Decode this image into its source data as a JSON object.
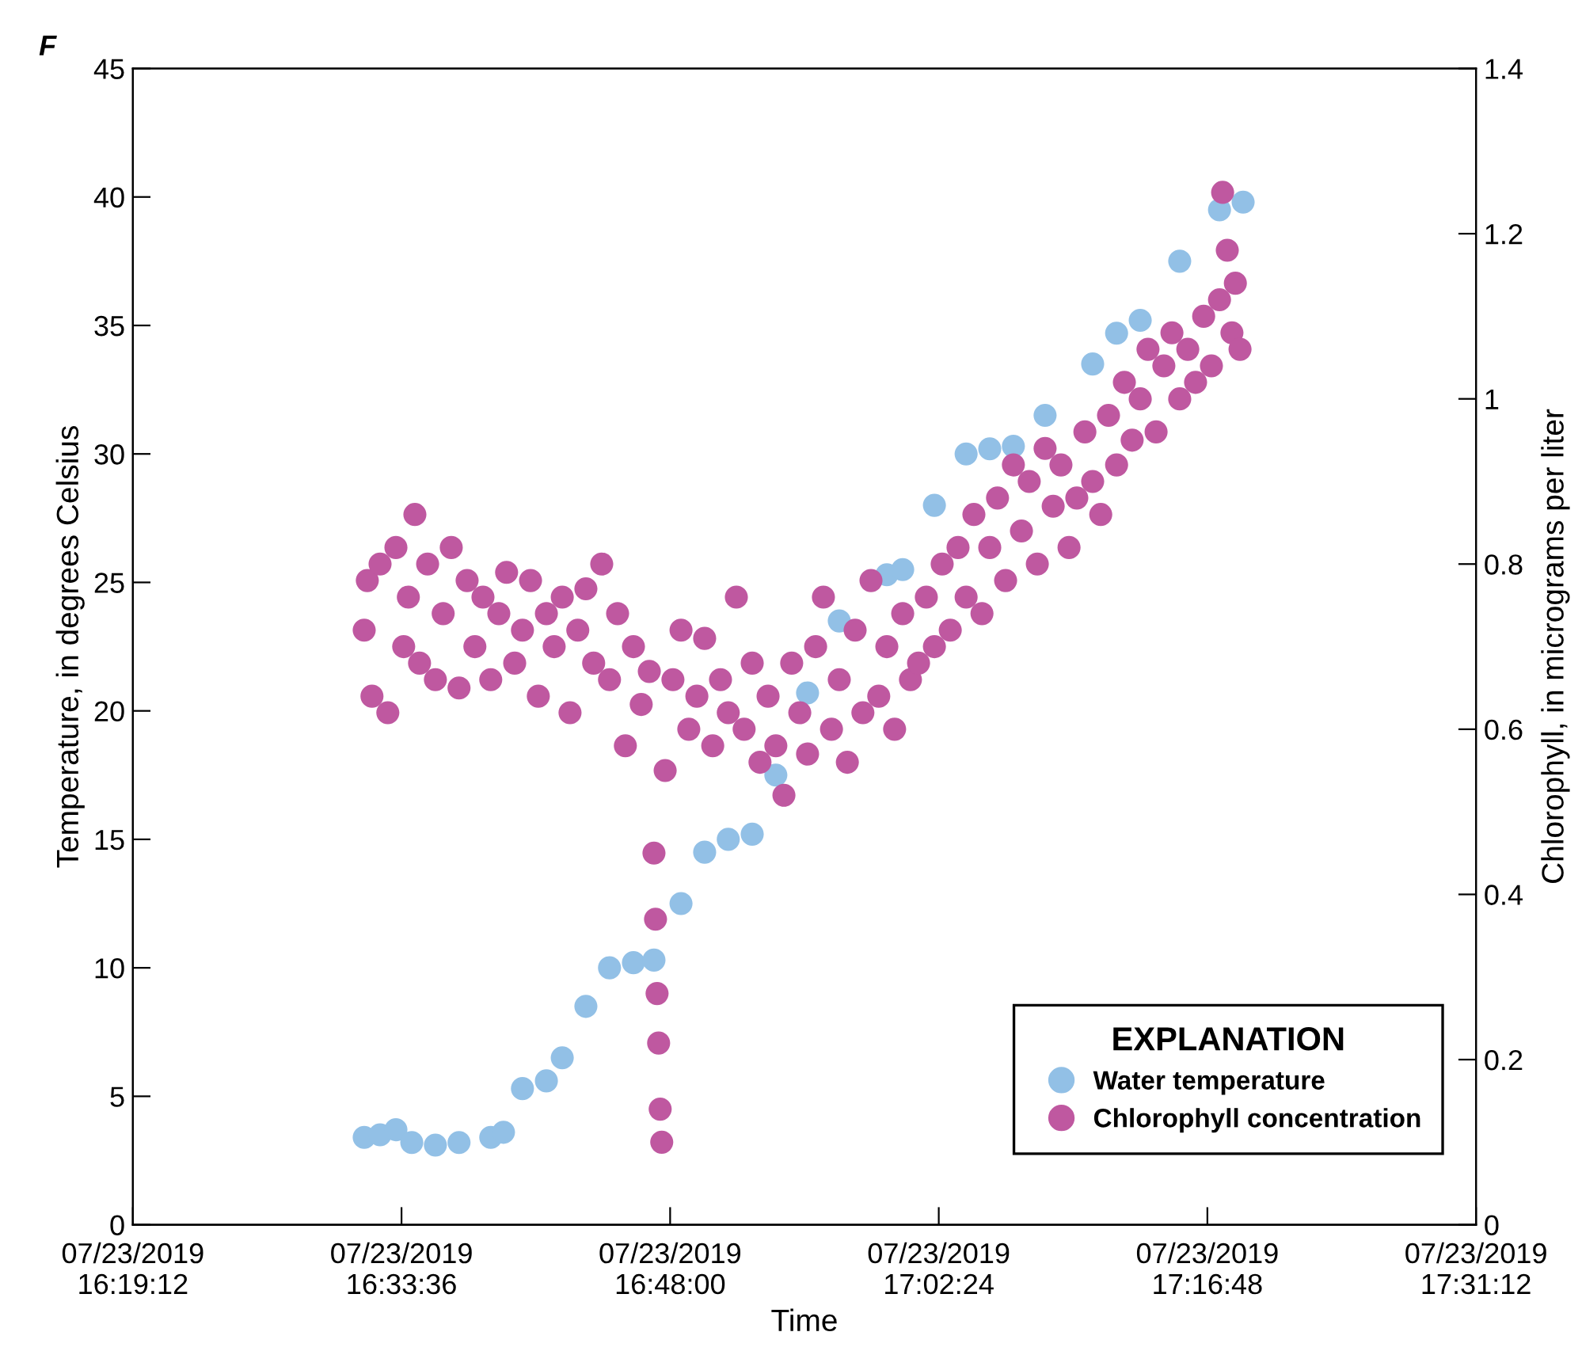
{
  "chart_data": {
    "type": "scatter",
    "title": "F",
    "xlabel": "Time",
    "ylabel": "Temperature, in degrees Celsius",
    "y2label": "Chlorophyll, in micrograms per liter",
    "legend_title": "EXPLANATION",
    "legend": "bottom right",
    "grid": false,
    "marker": "circle",
    "xlim": [
      "2019-07-23T16:19:12",
      "2019-07-23T17:31:12"
    ],
    "xticks": [
      {
        "value": "2019-07-23T16:19:12",
        "label": "07/23/2019\n16:19:12"
      },
      {
        "value": "2019-07-23T16:33:36",
        "label": "07/23/2019\n16:33:36"
      },
      {
        "value": "2019-07-23T16:48:00",
        "label": "07/23/2019\n16:48:00"
      },
      {
        "value": "2019-07-23T17:02:24",
        "label": "07/23/2019\n17:02:24"
      },
      {
        "value": "2019-07-23T17:16:48",
        "label": "07/23/2019\n17:16:48"
      },
      {
        "value": "2019-07-23T17:31:12",
        "label": "07/23/2019\n17:31:12"
      }
    ],
    "ylim": [
      0,
      45
    ],
    "yticks": [
      0,
      5,
      10,
      15,
      20,
      25,
      30,
      35,
      40,
      45
    ],
    "y2lim": [
      0,
      1.4
    ],
    "y2ticks": [
      0,
      0.2,
      0.4,
      0.6,
      0.8,
      1,
      1.2,
      1.4
    ],
    "series": [
      {
        "name": "Water temperature",
        "color": "#92c0e6",
        "x": [
          "2019-07-23T16:31:36",
          "2019-07-23T16:32:27",
          "2019-07-23T16:33:18",
          "2019-07-23T16:34:09",
          "2019-07-23T16:35:25",
          "2019-07-23T16:36:41",
          "2019-07-23T16:38:23",
          "2019-07-23T16:39:04",
          "2019-07-23T16:40:05",
          "2019-07-23T16:41:22",
          "2019-07-23T16:42:13",
          "2019-07-23T16:43:29",
          "2019-07-23T16:44:45",
          "2019-07-23T16:46:02",
          "2019-07-23T16:47:08",
          "2019-07-23T16:48:35",
          "2019-07-23T16:49:51",
          "2019-07-23T16:51:07",
          "2019-07-23T16:52:24",
          "2019-07-23T16:53:40",
          "2019-07-23T16:55:22",
          "2019-07-23T16:57:04",
          "2019-07-23T16:59:37",
          "2019-07-23T17:00:28",
          "2019-07-23T17:02:10",
          "2019-07-23T17:03:52",
          "2019-07-23T17:05:08",
          "2019-07-23T17:06:24",
          "2019-07-23T17:08:06",
          "2019-07-23T17:10:39",
          "2019-07-23T17:11:56",
          "2019-07-23T17:13:12",
          "2019-07-23T17:15:19",
          "2019-07-23T17:17:27",
          "2019-07-23T17:18:43"
        ],
        "values": [
          3.4,
          3.5,
          3.7,
          3.2,
          3.1,
          3.2,
          3.4,
          3.6,
          5.3,
          5.6,
          6.5,
          8.5,
          10.0,
          10.2,
          10.3,
          12.5,
          14.5,
          15.0,
          15.2,
          17.5,
          20.7,
          23.5,
          25.3,
          25.5,
          28.0,
          30.0,
          30.2,
          30.3,
          31.5,
          33.5,
          34.7,
          35.2,
          37.5,
          39.5,
          39.8
        ]
      },
      {
        "name": "Chlorophyll concentration",
        "color": "#bf58a0",
        "axis": "y2",
        "x": [
          "2019-07-23T16:31:36",
          "2019-07-23T16:31:46",
          "2019-07-23T16:32:01",
          "2019-07-23T16:32:27",
          "2019-07-23T16:32:52",
          "2019-07-23T16:33:18",
          "2019-07-23T16:33:43",
          "2019-07-23T16:33:58",
          "2019-07-23T16:34:19",
          "2019-07-23T16:34:34",
          "2019-07-23T16:35:00",
          "2019-07-23T16:35:25",
          "2019-07-23T16:35:50",
          "2019-07-23T16:36:16",
          "2019-07-23T16:36:41",
          "2019-07-23T16:37:07",
          "2019-07-23T16:37:32",
          "2019-07-23T16:37:58",
          "2019-07-23T16:38:23",
          "2019-07-23T16:38:49",
          "2019-07-23T16:39:14",
          "2019-07-23T16:39:40",
          "2019-07-23T16:40:05",
          "2019-07-23T16:40:31",
          "2019-07-23T16:40:56",
          "2019-07-23T16:41:22",
          "2019-07-23T16:41:47",
          "2019-07-23T16:42:13",
          "2019-07-23T16:42:38",
          "2019-07-23T16:43:03",
          "2019-07-23T16:43:29",
          "2019-07-23T16:43:54",
          "2019-07-23T16:44:20",
          "2019-07-23T16:44:45",
          "2019-07-23T16:45:11",
          "2019-07-23T16:45:36",
          "2019-07-23T16:46:02",
          "2019-07-23T16:46:27",
          "2019-07-23T16:46:53",
          "2019-07-23T16:47:08",
          "2019-07-23T16:47:13",
          "2019-07-23T16:47:18",
          "2019-07-23T16:47:23",
          "2019-07-23T16:47:28",
          "2019-07-23T16:47:33",
          "2019-07-23T16:47:44",
          "2019-07-23T16:48:09",
          "2019-07-23T16:48:35",
          "2019-07-23T16:49:00",
          "2019-07-23T16:49:26",
          "2019-07-23T16:49:51",
          "2019-07-23T16:50:17",
          "2019-07-23T16:50:42",
          "2019-07-23T16:51:07",
          "2019-07-23T16:51:33",
          "2019-07-23T16:51:58",
          "2019-07-23T16:52:24",
          "2019-07-23T16:52:49",
          "2019-07-23T16:53:15",
          "2019-07-23T16:53:40",
          "2019-07-23T16:54:06",
          "2019-07-23T16:54:31",
          "2019-07-23T16:54:57",
          "2019-07-23T16:55:22",
          "2019-07-23T16:55:48",
          "2019-07-23T16:56:13",
          "2019-07-23T16:56:39",
          "2019-07-23T16:57:04",
          "2019-07-23T16:57:30",
          "2019-07-23T16:57:55",
          "2019-07-23T16:58:20",
          "2019-07-23T16:58:46",
          "2019-07-23T16:59:11",
          "2019-07-23T16:59:37",
          "2019-07-23T17:00:02",
          "2019-07-23T17:00:28",
          "2019-07-23T17:00:53",
          "2019-07-23T17:01:19",
          "2019-07-23T17:01:44",
          "2019-07-23T17:02:10",
          "2019-07-23T17:02:35",
          "2019-07-23T17:03:01",
          "2019-07-23T17:03:26",
          "2019-07-23T17:03:52",
          "2019-07-23T17:04:17",
          "2019-07-23T17:04:43",
          "2019-07-23T17:05:08",
          "2019-07-23T17:05:33",
          "2019-07-23T17:05:59",
          "2019-07-23T17:06:24",
          "2019-07-23T17:06:50",
          "2019-07-23T17:07:15",
          "2019-07-23T17:07:41",
          "2019-07-23T17:08:06",
          "2019-07-23T17:08:32",
          "2019-07-23T17:08:57",
          "2019-07-23T17:09:23",
          "2019-07-23T17:09:48",
          "2019-07-23T17:10:14",
          "2019-07-23T17:10:39",
          "2019-07-23T17:11:05",
          "2019-07-23T17:11:30",
          "2019-07-23T17:11:56",
          "2019-07-23T17:12:21",
          "2019-07-23T17:12:46",
          "2019-07-23T17:13:12",
          "2019-07-23T17:13:37",
          "2019-07-23T17:14:03",
          "2019-07-23T17:14:28",
          "2019-07-23T17:14:54",
          "2019-07-23T17:15:19",
          "2019-07-23T17:15:45",
          "2019-07-23T17:16:10",
          "2019-07-23T17:16:36",
          "2019-07-23T17:17:01",
          "2019-07-23T17:17:27",
          "2019-07-23T17:17:37",
          "2019-07-23T17:17:52",
          "2019-07-23T17:18:07",
          "2019-07-23T17:18:18",
          "2019-07-23T17:18:33"
        ],
        "values": [
          0.72,
          0.78,
          0.64,
          0.8,
          0.62,
          0.82,
          0.7,
          0.76,
          0.86,
          0.68,
          0.8,
          0.66,
          0.74,
          0.82,
          0.65,
          0.78,
          0.7,
          0.76,
          0.66,
          0.74,
          0.79,
          0.68,
          0.72,
          0.78,
          0.64,
          0.74,
          0.7,
          0.76,
          0.62,
          0.72,
          0.77,
          0.68,
          0.8,
          0.66,
          0.74,
          0.58,
          0.7,
          0.63,
          0.67,
          0.45,
          0.37,
          0.28,
          0.22,
          0.14,
          0.1,
          0.55,
          0.66,
          0.72,
          0.6,
          0.64,
          0.71,
          0.58,
          0.66,
          0.62,
          0.76,
          0.6,
          0.68,
          0.56,
          0.64,
          0.58,
          0.52,
          0.68,
          0.62,
          0.57,
          0.7,
          0.76,
          0.6,
          0.66,
          0.56,
          0.72,
          0.62,
          0.78,
          0.64,
          0.7,
          0.6,
          0.74,
          0.66,
          0.68,
          0.76,
          0.7,
          0.8,
          0.72,
          0.82,
          0.76,
          0.86,
          0.74,
          0.82,
          0.88,
          0.78,
          0.92,
          0.84,
          0.9,
          0.8,
          0.94,
          0.87,
          0.92,
          0.82,
          0.88,
          0.96,
          0.9,
          0.86,
          0.98,
          0.92,
          1.02,
          0.95,
          1.0,
          1.06,
          0.96,
          1.04,
          1.08,
          1.0,
          1.06,
          1.02,
          1.1,
          1.04,
          1.12,
          1.25,
          1.18,
          1.08,
          1.14,
          1.06
        ]
      }
    ]
  }
}
